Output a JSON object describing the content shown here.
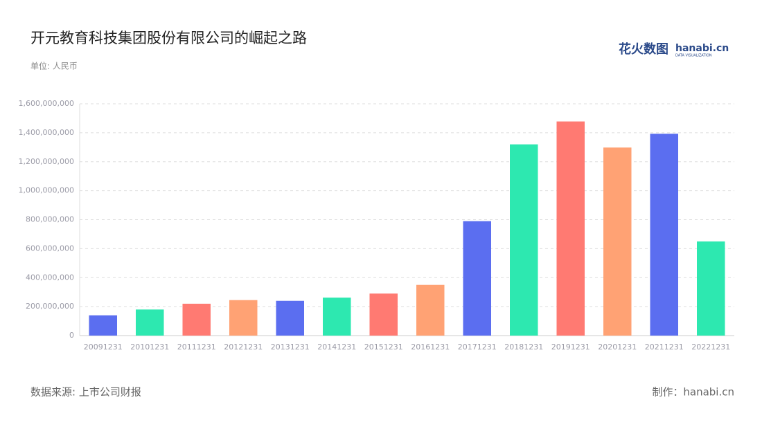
{
  "chart_data": {
    "type": "bar",
    "title": "开元教育科技集团股份有限公司的崛起之路",
    "subtitle": "单位: 人民币",
    "source": "数据来源: 上市公司财报",
    "credit": "制作：hanabi.cn",
    "logo": {
      "text": "花火数图",
      "brand": "hanabi.cn",
      "tagline": "DATA VISUALIZATION"
    },
    "categories": [
      "20091231",
      "20101231",
      "20111231",
      "20121231",
      "20131231",
      "20141231",
      "20151231",
      "20161231",
      "20171231",
      "20181231",
      "20191231",
      "20201231",
      "20211231",
      "20221231"
    ],
    "values": [
      140000000,
      180000000,
      220000000,
      245000000,
      240000000,
      262000000,
      290000000,
      350000000,
      790000000,
      1320000000,
      1478000000,
      1298000000,
      1393000000,
      650000000
    ],
    "colors": [
      "#5b6ef0",
      "#2de8b0",
      "#ff7a72",
      "#ffa274"
    ],
    "ylim": [
      0,
      1600000000
    ],
    "yticks": [
      0,
      {
        "value": 200000000,
        "label": "200,000,000"
      },
      {
        "value": 400000000,
        "label": "400,000,000"
      },
      {
        "value": 600000000,
        "label": "600,000,000"
      },
      {
        "value": 800000000,
        "label": "800,000,000"
      },
      {
        "value": 1000000000,
        "label": "1,000,000,000"
      },
      {
        "value": 1200000000,
        "label": "1,200,000,000"
      },
      {
        "value": 1400000000,
        "label": "1,400,000,000"
      },
      {
        "value": 1600000000,
        "label": "1,600,000,000"
      }
    ],
    "grid": true
  }
}
